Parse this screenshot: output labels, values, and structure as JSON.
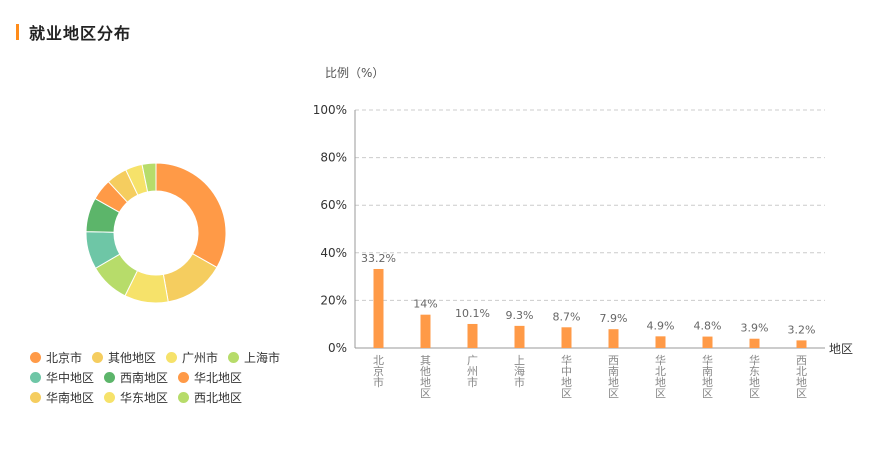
{
  "page": {
    "title": "就业地区分布"
  },
  "colors": {
    "accent": "#ff8c1a",
    "bar": "#ff9a47",
    "grid": "#cccccc",
    "axis": "#999999",
    "slices": [
      "#ff9a47",
      "#f5cd5f",
      "#f6e26a",
      "#b7dc6a",
      "#6ec6a6",
      "#5cb56a",
      "#ff9a47",
      "#f5cd5f",
      "#f6e26a",
      "#b7dc6a"
    ]
  },
  "chart_data": {
    "type": "bar",
    "ylabel": "比例（%）",
    "xlabel": "地区",
    "ylim": [
      0,
      100
    ],
    "yticks": [
      "0%",
      "20%",
      "40%",
      "60%",
      "80%",
      "100%"
    ],
    "grid": true,
    "categories": [
      "北京市",
      "其他地区",
      "广州市",
      "上海市",
      "华中地区",
      "西南地区",
      "华北地区",
      "华南地区",
      "华东地区",
      "西北地区"
    ],
    "values": [
      33.2,
      14,
      10.1,
      9.3,
      8.7,
      7.9,
      4.9,
      4.8,
      3.9,
      3.2
    ],
    "value_labels": [
      "33.2%",
      "14%",
      "10.1%",
      "9.3%",
      "8.7%",
      "7.9%",
      "4.9%",
      "4.8%",
      "3.9%",
      "3.2%"
    ]
  },
  "donut": {
    "type": "pie",
    "legend": [
      "北京市",
      "其他地区",
      "广州市",
      "上海市",
      "华中地区",
      "西南地区",
      "华北地区",
      "华南地区",
      "华东地区",
      "西北地区"
    ],
    "values": [
      33.2,
      14,
      10.1,
      9.3,
      8.7,
      7.9,
      4.9,
      4.8,
      3.9,
      3.2
    ]
  }
}
